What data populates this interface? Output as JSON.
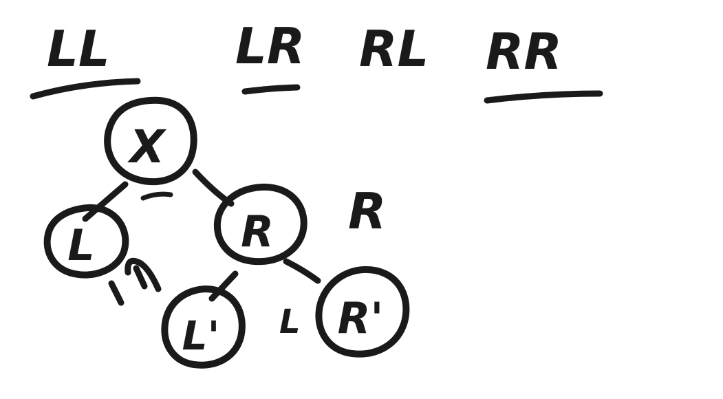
{
  "headings": [
    {
      "id": "ll",
      "text": "LL"
    },
    {
      "id": "lr",
      "text": "LR"
    },
    {
      "id": "rl",
      "text": "RL"
    },
    {
      "id": "rr",
      "text": "RR"
    }
  ],
  "tree": {
    "root": {
      "label": "X"
    },
    "left": {
      "label": "L"
    },
    "right": {
      "label": "R"
    },
    "right_left": {
      "label": "L'"
    },
    "right_right": {
      "label": "R'"
    }
  },
  "annotations": {
    "right_side_marker": "R",
    "between_children_marker": "L"
  }
}
